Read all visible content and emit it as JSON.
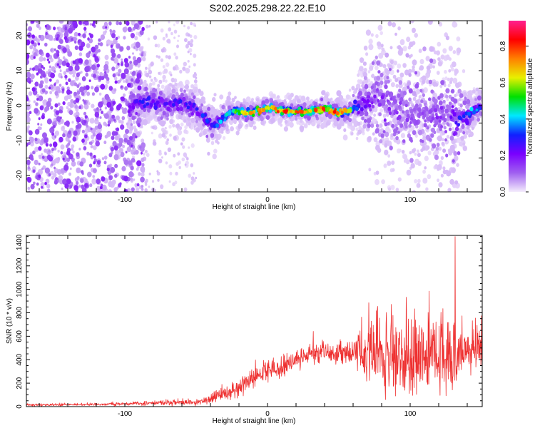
{
  "chart_data": [
    {
      "type": "heatmap",
      "title": "S202.2025.298.22.22.E10",
      "xlabel": "Height of straight line (km)",
      "ylabel": "Frequency (Hz)",
      "xlim": [
        -169,
        150.5
      ],
      "ylim": [
        -24.7,
        24.3
      ],
      "xticks": [
        -100,
        0,
        100
      ],
      "yticks": [
        -20,
        -10,
        0,
        10,
        20
      ],
      "colorbar": {
        "label": "Normalized spectral amplitude",
        "range": [
          0,
          0.94
        ],
        "ticks": [
          0.0,
          0.2,
          0.4,
          0.6,
          0.8
        ],
        "colors": [
          "#f4ecfc",
          "#a060f0",
          "#7a00ff",
          "#1020ff",
          "#00e8ff",
          "#00e000",
          "#e8f000",
          "#ff8000",
          "#ff0000",
          "#ff2090"
        ]
      },
      "noise_region": {
        "x": [
          -169,
          -95
        ],
        "amplitude": [
          0.03,
          0.18
        ]
      },
      "ridge": {
        "x": [
          -97,
          -90,
          -80,
          -70,
          -60,
          -50,
          -45,
          -38,
          -32,
          -25,
          -15,
          -5,
          0,
          10,
          20,
          30,
          40,
          50,
          58,
          65,
          75,
          85,
          100,
          115,
          130,
          138,
          148
        ],
        "freq": [
          -1,
          1,
          1,
          0.5,
          1,
          -1,
          -3,
          -6,
          -4,
          -1.5,
          -2,
          -1.5,
          -0.5,
          -1.5,
          -2,
          -1.5,
          -1,
          -2,
          -1.5,
          0,
          2.5,
          0,
          -3,
          -2,
          -4,
          -3,
          -0.5
        ],
        "amp": [
          0.2,
          0.3,
          0.3,
          0.28,
          0.3,
          0.3,
          0.35,
          0.4,
          0.45,
          0.55,
          0.7,
          0.8,
          0.7,
          0.85,
          0.8,
          0.8,
          0.85,
          0.85,
          0.6,
          0.3,
          0.2,
          0.18,
          0.15,
          0.15,
          0.25,
          0.4,
          0.45
        ],
        "spread_hz": [
          3,
          3,
          3,
          3,
          3,
          2.5,
          2.5,
          2.5,
          2,
          1.5,
          1.5,
          1.5,
          1.5,
          1.5,
          1.5,
          1.5,
          1.5,
          1.5,
          2,
          4,
          8,
          9,
          10,
          9,
          9,
          3,
          2
        ]
      }
    },
    {
      "type": "line",
      "xlabel": "Height of straight line (km)",
      "ylabel": "SNR (10 * v/v)",
      "xlim": [
        -169,
        150.5
      ],
      "ylim": [
        0,
        1460
      ],
      "xticks": [
        -100,
        0,
        100
      ],
      "yticks": [
        0,
        200,
        400,
        600,
        800,
        1000,
        1200,
        1400
      ],
      "color": "#ee3030",
      "series": [
        {
          "name": "SNR",
          "x": [
            -169,
            -120,
            -100,
            -80,
            -60,
            -45,
            -35,
            -25,
            -15,
            -5,
            5,
            15,
            25,
            35,
            50,
            60,
            70,
            80,
            95,
            110,
            125,
            135,
            150
          ],
          "mean": [
            15,
            18,
            22,
            30,
            35,
            40,
            90,
            140,
            190,
            290,
            320,
            360,
            430,
            470,
            470,
            470,
            460,
            430,
            400,
            420,
            430,
            460,
            480
          ],
          "spread": [
            12,
            12,
            15,
            20,
            25,
            30,
            60,
            80,
            100,
            100,
            100,
            110,
            110,
            110,
            100,
            110,
            250,
            380,
            420,
            400,
            380,
            200,
            200
          ],
          "peak": 1450
        }
      ]
    }
  ]
}
